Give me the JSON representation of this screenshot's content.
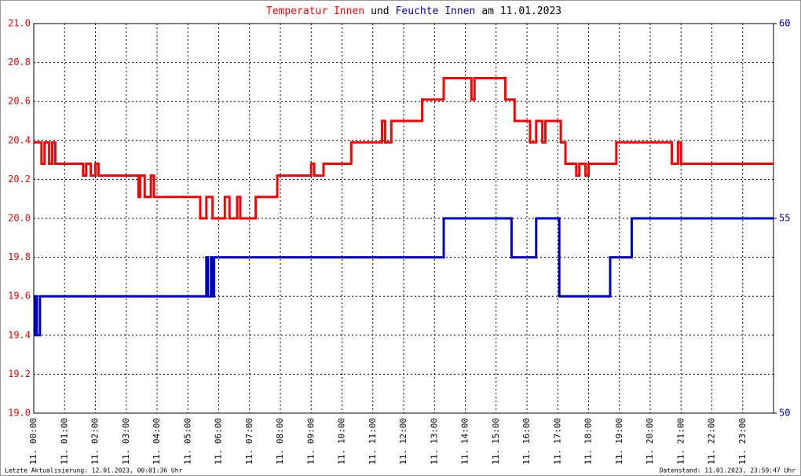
{
  "chart_data": {
    "type": "line",
    "title_parts": [
      {
        "text": "Temperatur Innen",
        "color": "#ff0000"
      },
      {
        "text": "und",
        "color": "#000000"
      },
      {
        "text": "Feuchte Innen",
        "color": "#0000cc"
      },
      {
        "text": "am 11.01.2023",
        "color": "#000000"
      }
    ],
    "footer_left": "Letzte Aktualisierung: 12.01.2023, 00:01:36 Uhr",
    "footer_right": "Datenstand: 11.01.2023, 23:59:47 Uhr",
    "grid": true,
    "xlim": [
      0,
      24
    ],
    "xticks": [
      {
        "value": 0,
        "label": "11. 00:00"
      },
      {
        "value": 1,
        "label": "11. 01:00"
      },
      {
        "value": 2,
        "label": "11. 02:00"
      },
      {
        "value": 3,
        "label": "11. 03:00"
      },
      {
        "value": 4,
        "label": "11. 04:00"
      },
      {
        "value": 5,
        "label": "11. 05:00"
      },
      {
        "value": 6,
        "label": "11. 06:00"
      },
      {
        "value": 7,
        "label": "11. 07:00"
      },
      {
        "value": 8,
        "label": "11. 08:00"
      },
      {
        "value": 9,
        "label": "11. 09:00"
      },
      {
        "value": 10,
        "label": "11. 10:00"
      },
      {
        "value": 11,
        "label": "11. 11:00"
      },
      {
        "value": 12,
        "label": "11. 12:00"
      },
      {
        "value": 13,
        "label": "11. 13:00"
      },
      {
        "value": 14,
        "label": "11. 14:00"
      },
      {
        "value": 15,
        "label": "11. 15:00"
      },
      {
        "value": 16,
        "label": "11. 16:00"
      },
      {
        "value": 17,
        "label": "11. 17:00"
      },
      {
        "value": 18,
        "label": "11. 18:00"
      },
      {
        "value": 19,
        "label": "11. 19:00"
      },
      {
        "value": 20,
        "label": "11. 20:00"
      },
      {
        "value": 21,
        "label": "11. 21:00"
      },
      {
        "value": 22,
        "label": "11. 22:00"
      },
      {
        "value": 23,
        "label": "11. 23:00"
      }
    ],
    "ylim": [
      19.0,
      21.0
    ],
    "yticks": [
      {
        "value": 19,
        "label": "19.0"
      },
      19.2,
      19.4,
      19.6,
      19.8,
      {
        "value": 20,
        "label": "20.0"
      },
      20.2,
      20.4,
      20.6,
      20.8,
      {
        "value": 21,
        "label": "21.0"
      }
    ],
    "y_tick_color": "#ff0000",
    "y2lim": [
      50,
      60
    ],
    "y2ticks": [
      50,
      55,
      60
    ],
    "y2_tick_color": "#0000cc",
    "series": [
      {
        "color": "#ff0000",
        "x": [
          0,
          0.25,
          0.25,
          0.35,
          0.35,
          0.5,
          0.5,
          0.6,
          0.6,
          0.7,
          0.7,
          1.6,
          1.6,
          1.7,
          1.7,
          1.85,
          1.85,
          2.0,
          2.0,
          2.1,
          2.1,
          3.4,
          3.4,
          3.45,
          3.45,
          3.6,
          3.6,
          3.8,
          3.8,
          3.9,
          3.9,
          5.4,
          5.4,
          5.6,
          5.6,
          5.8,
          5.8,
          6.2,
          6.2,
          6.35,
          6.35,
          6.6,
          6.6,
          6.7,
          6.7,
          7.2,
          7.2,
          7.9,
          7.9,
          9.0,
          9.0,
          9.1,
          9.1,
          9.4,
          9.4,
          10.3,
          10.3,
          11.3,
          11.3,
          11.4,
          11.4,
          11.6,
          11.6,
          12.6,
          12.6,
          13.3,
          13.3,
          14.2,
          14.2,
          14.3,
          14.3,
          15.3,
          15.3,
          15.6,
          15.6,
          16.1,
          16.1,
          16.3,
          16.3,
          16.5,
          16.5,
          16.6,
          16.6,
          17.1,
          17.1,
          17.25,
          17.25,
          17.6,
          17.6,
          17.7,
          17.7,
          17.9,
          17.9,
          18.0,
          18.0,
          18.9,
          18.9,
          20.7,
          20.7,
          20.9,
          20.9,
          21.0,
          21.0,
          24
        ],
        "values": [
          20.39,
          20.39,
          20.28,
          20.28,
          20.39,
          20.39,
          20.28,
          20.28,
          20.39,
          20.39,
          20.28,
          20.28,
          20.22,
          20.22,
          20.28,
          20.28,
          20.22,
          20.22,
          20.28,
          20.28,
          20.22,
          20.22,
          20.11,
          20.11,
          20.22,
          20.22,
          20.11,
          20.11,
          20.22,
          20.22,
          20.11,
          20.11,
          20.0,
          20.0,
          20.11,
          20.11,
          20.0,
          20.0,
          20.11,
          20.11,
          20.0,
          20.0,
          20.11,
          20.11,
          20.0,
          20.0,
          20.11,
          20.11,
          20.22,
          20.22,
          20.28,
          20.28,
          20.22,
          20.22,
          20.28,
          20.28,
          20.39,
          20.39,
          20.5,
          20.5,
          20.39,
          20.39,
          20.5,
          20.5,
          20.61,
          20.61,
          20.72,
          20.72,
          20.61,
          20.61,
          20.72,
          20.72,
          20.61,
          20.61,
          20.5,
          20.5,
          20.39,
          20.39,
          20.5,
          20.5,
          20.39,
          20.39,
          20.5,
          20.5,
          20.39,
          20.39,
          20.28,
          20.28,
          20.22,
          20.22,
          20.28,
          20.28,
          20.22,
          20.22,
          20.28,
          20.28,
          20.39,
          20.39,
          20.28,
          20.28,
          20.39,
          20.39,
          20.28,
          20.28
        ]
      },
      {
        "color": "#0000cc",
        "axis": "y2",
        "x": [
          0,
          0.05,
          0.05,
          0.1,
          0.1,
          0.2,
          0.2,
          5.6,
          5.6,
          5.65,
          5.65,
          5.75,
          5.75,
          5.8,
          5.8,
          5.85,
          5.85,
          13.3,
          13.3,
          15.5,
          15.5,
          16.3,
          16.3,
          17.05,
          17.05,
          18.7,
          18.7,
          19.4,
          19.4,
          24
        ],
        "values": [
          52,
          52,
          53,
          53,
          52,
          52,
          53,
          53,
          54,
          54,
          53,
          53,
          54,
          54,
          53,
          53,
          54,
          54,
          55,
          55,
          54,
          54,
          55,
          55,
          53,
          53,
          54,
          54,
          55,
          55
        ]
      }
    ]
  }
}
